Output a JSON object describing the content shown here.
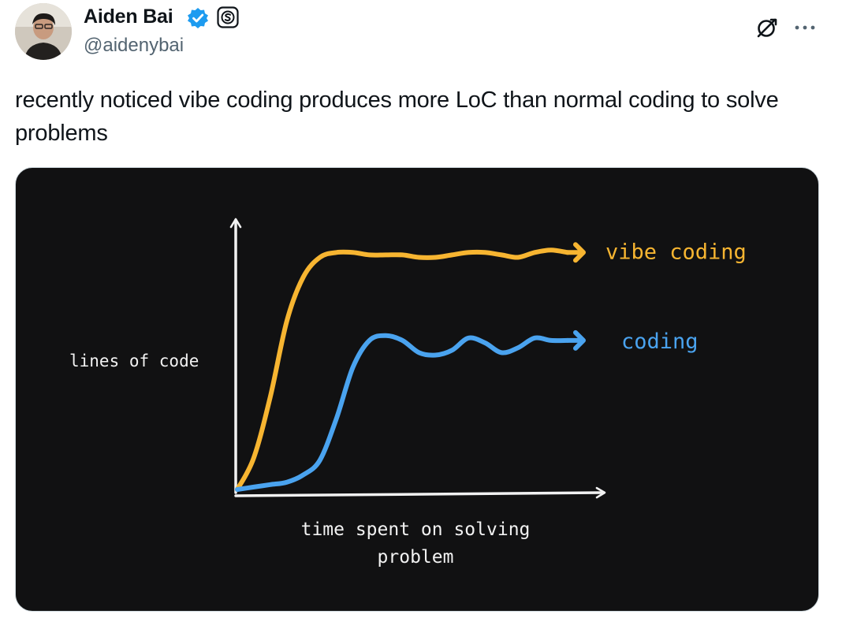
{
  "author": {
    "name": "Aiden Bai",
    "handle": "@aidenybai",
    "verified": true,
    "verified_color": "#1d9bf0"
  },
  "header_icons": [
    "grok-icon",
    "more-icon"
  ],
  "tweet": {
    "text": "recently noticed vibe coding produces more LoC than normal coding to solve problems"
  },
  "media": {
    "background": "#111112",
    "chart_data": {
      "type": "line",
      "title": "",
      "xlabel": "time spent on solving problem",
      "xlabel_lines": [
        "time spent on solving",
        "problem"
      ],
      "ylabel": "lines of code",
      "grid": false,
      "legend": "inline labels at line ends",
      "x": [
        0,
        5,
        10,
        15,
        20,
        25,
        30,
        35,
        40,
        45,
        50,
        55,
        60,
        65,
        70,
        75,
        80,
        85,
        90,
        95,
        100
      ],
      "series": [
        {
          "name": "vibe coding",
          "color": "#f7b531",
          "values": [
            0,
            13,
            38,
            69,
            87,
            95,
            97,
            97,
            96,
            96,
            96,
            95,
            95,
            96,
            97,
            97,
            96,
            95,
            97,
            98,
            97
          ]
        },
        {
          "name": "coding",
          "color": "#4aa3ef",
          "values": [
            0,
            1,
            2,
            3,
            6,
            12,
            29,
            50,
            61,
            63,
            61,
            56,
            55,
            57,
            62,
            60,
            56,
            58,
            62,
            61,
            61
          ]
        }
      ]
    }
  }
}
